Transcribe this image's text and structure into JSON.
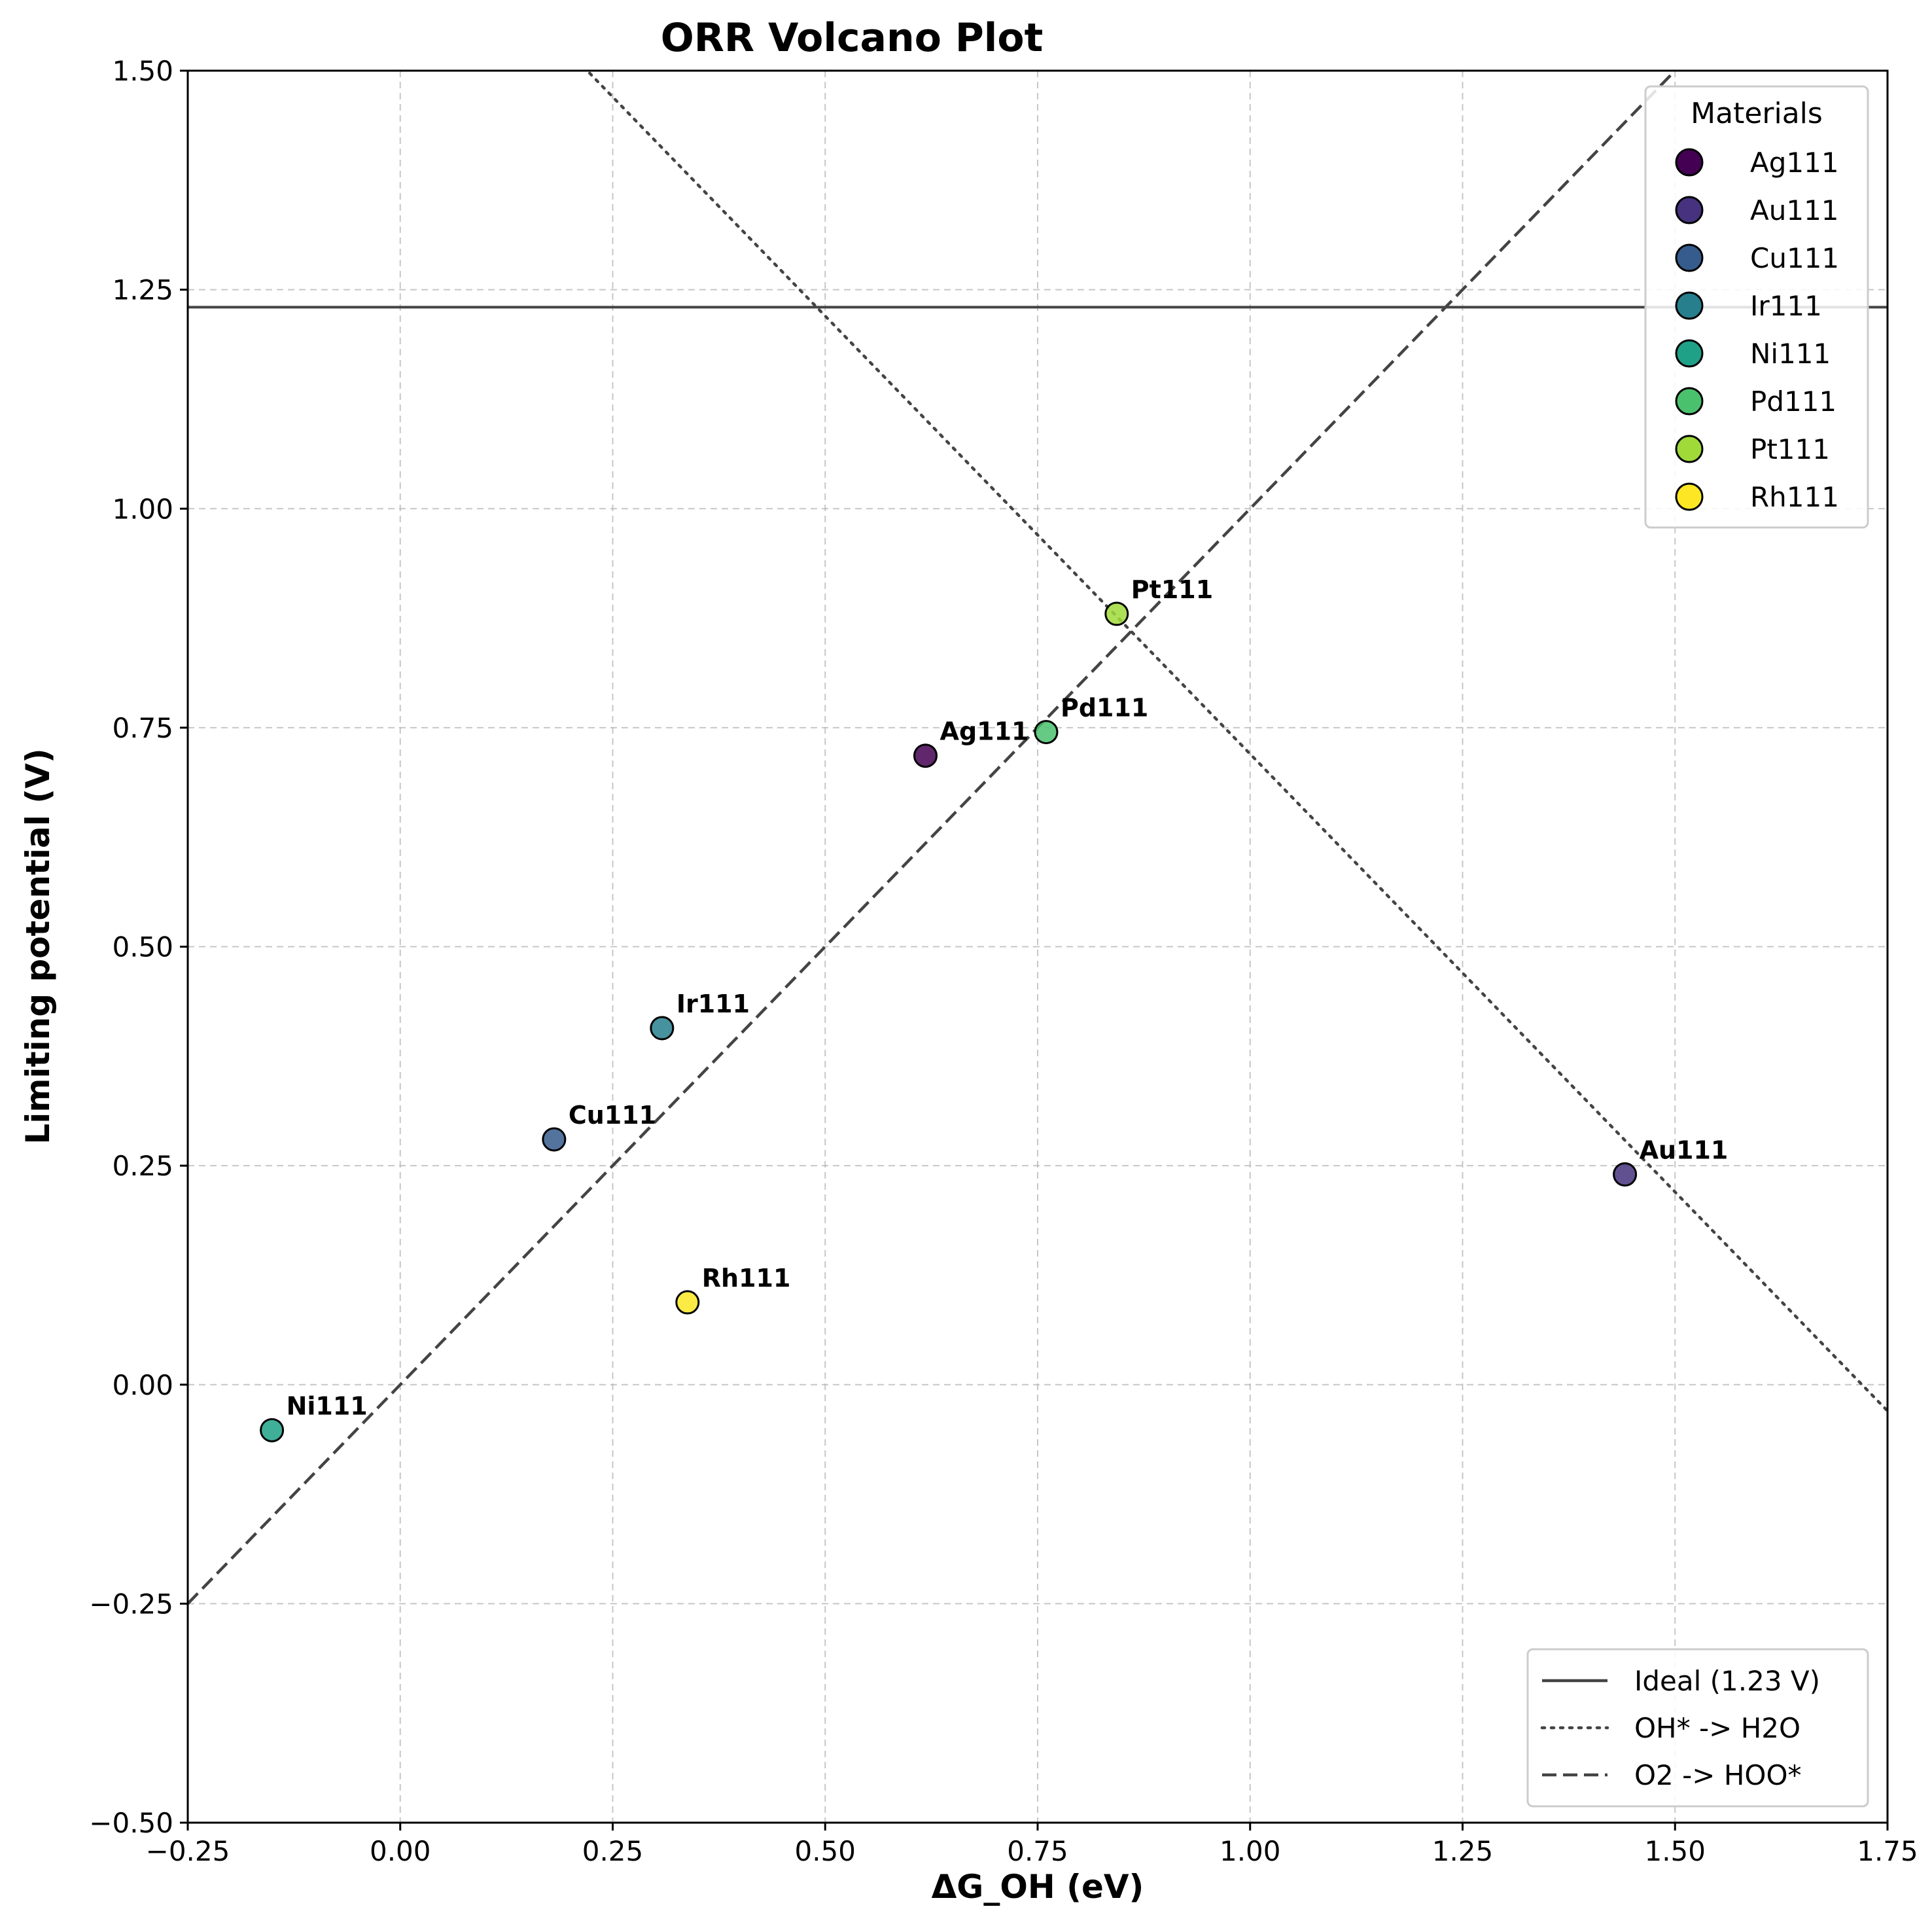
{
  "chart_data": {
    "type": "scatter",
    "title": "ORR Volcano Plot",
    "xlabel": "ΔG_OH (eV)",
    "ylabel": "Limiting potential (V)",
    "xlim": [
      -0.25,
      1.75
    ],
    "ylim": [
      -0.5,
      1.5
    ],
    "xticks": [
      -0.25,
      0.0,
      0.25,
      0.5,
      0.75,
      1.0,
      1.25,
      1.5,
      1.75
    ],
    "xtick_labels": [
      "−0.25",
      "0.00",
      "0.25",
      "0.50",
      "0.75",
      "1.00",
      "1.25",
      "1.50",
      "1.75"
    ],
    "yticks": [
      -0.5,
      -0.25,
      0.0,
      0.25,
      0.5,
      0.75,
      1.0,
      1.25,
      1.5
    ],
    "ytick_labels": [
      "−0.50",
      "−0.25",
      "0.00",
      "0.25",
      "0.50",
      "0.75",
      "1.00",
      "1.25",
      "1.50"
    ],
    "grid": true,
    "points": [
      {
        "name": "Ag111",
        "x": 0.618,
        "y": 0.718,
        "color": "#440154"
      },
      {
        "name": "Au111",
        "x": 1.441,
        "y": 0.24,
        "color": "#46327e"
      },
      {
        "name": "Cu111",
        "x": 0.181,
        "y": 0.28,
        "color": "#365c8d"
      },
      {
        "name": "Ir111",
        "x": 0.308,
        "y": 0.407,
        "color": "#277f8e"
      },
      {
        "name": "Ni111",
        "x": -0.151,
        "y": -0.052,
        "color": "#1fa187"
      },
      {
        "name": "Pd111",
        "x": 0.76,
        "y": 0.745,
        "color": "#4ac16d"
      },
      {
        "name": "Pt111",
        "x": 0.843,
        "y": 0.88,
        "color": "#a0da39"
      },
      {
        "name": "Rh111",
        "x": 0.338,
        "y": 0.094,
        "color": "#fde725"
      }
    ],
    "lines": [
      {
        "name": "Ideal (1.23 V)",
        "style": "solid",
        "slope": 0,
        "intercept": 1.23
      },
      {
        "name": "OH* -> H2O",
        "style": "dotted",
        "slope": -1,
        "intercept": 1.72
      },
      {
        "name": "O2 -> HOO*",
        "style": "dashed",
        "slope": 1,
        "intercept": 0
      }
    ],
    "materials_legend": {
      "title": "Materials",
      "placement": "top-right"
    },
    "lines_legend": {
      "placement": "bottom-right"
    }
  }
}
